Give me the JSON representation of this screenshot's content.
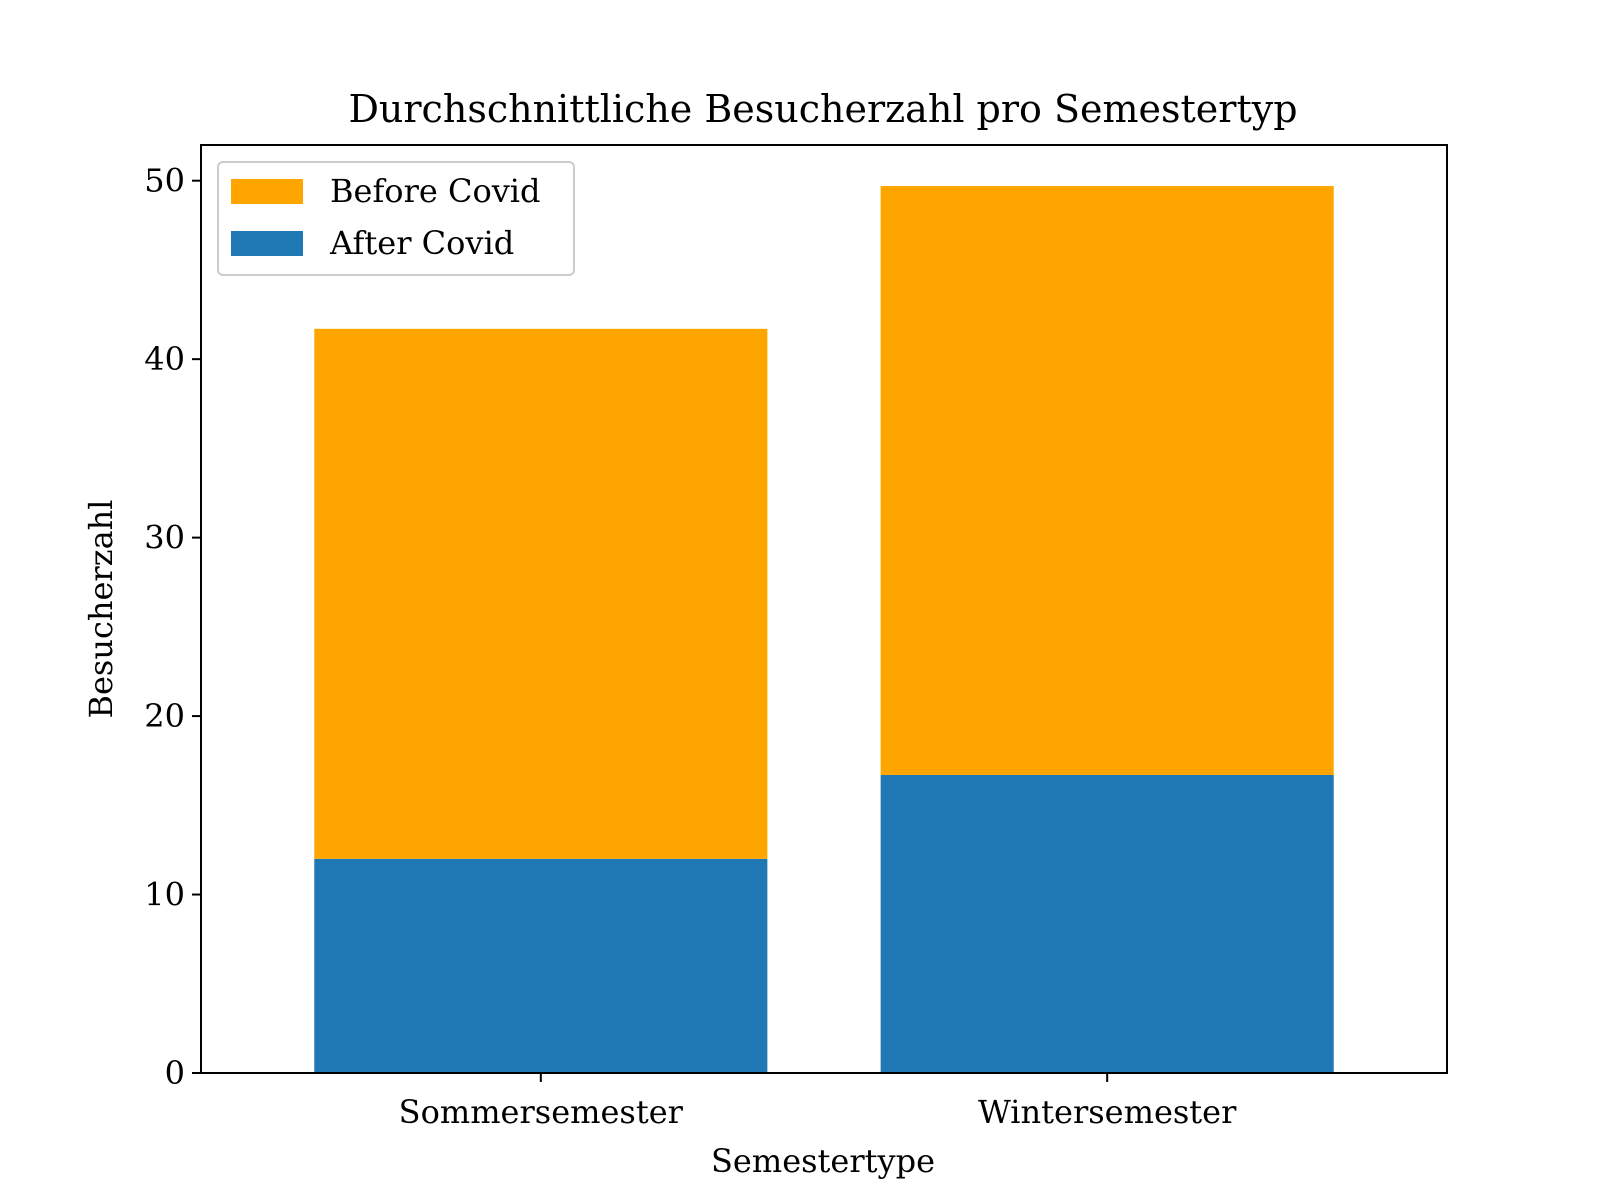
{
  "chart_data": {
    "type": "bar",
    "stacked": true,
    "title": "Durchschnittliche Besucherzahl pro Semestertyp",
    "xlabel": "Semestertype",
    "ylabel": "Besucherzahl",
    "categories": [
      "Sommersemester",
      "Wintersemester"
    ],
    "ylim": [
      0,
      52
    ],
    "yticks": [
      0,
      10,
      20,
      30,
      40,
      50
    ],
    "grid": false,
    "legend_position": "top-left",
    "series": [
      {
        "name": "After Covid",
        "values": [
          12.0,
          16.7
        ],
        "color": "#1f77b4"
      },
      {
        "name": "Before Covid",
        "values": [
          29.7,
          33.0
        ],
        "color": "#ffa500"
      }
    ],
    "legend_order": [
      "Before Covid",
      "After Covid"
    ]
  }
}
